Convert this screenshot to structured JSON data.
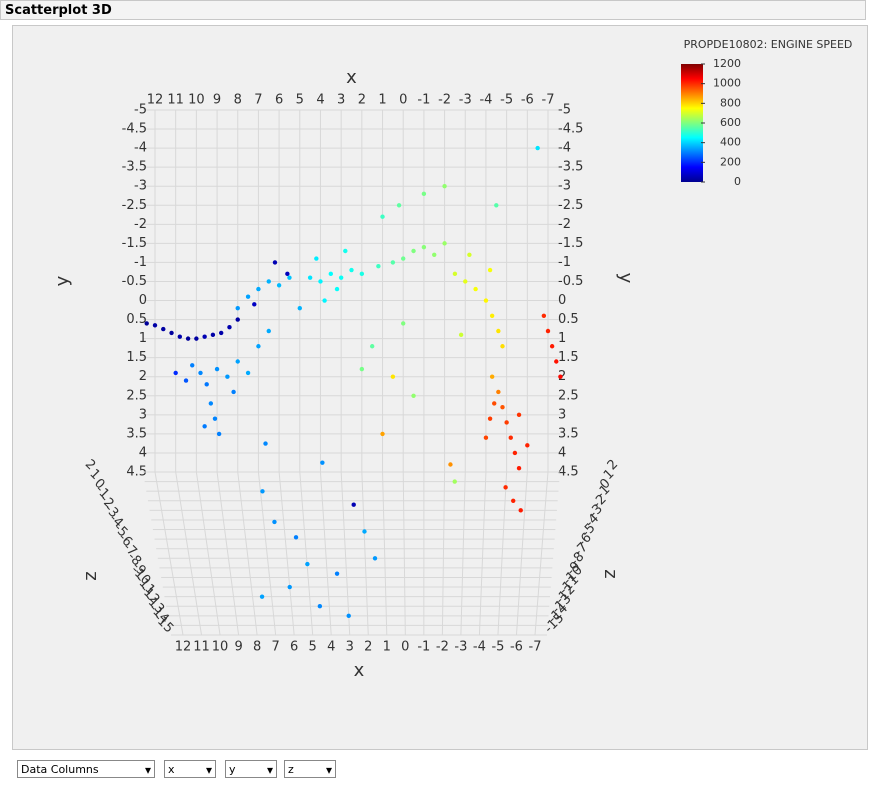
{
  "panel_title": "Scatterplot 3D",
  "chart_data": {
    "type": "scatter3d",
    "x_label": "x",
    "y_label": "y",
    "z_label": "z",
    "colorbar_title": "PROPDE10802: ENGINE SPEED",
    "clim": [
      0,
      1200
    ],
    "cticks": [
      0,
      200,
      400,
      600,
      800,
      1000,
      1200
    ],
    "xlim": [
      12,
      -7
    ],
    "xticks": [
      12,
      11,
      10,
      9,
      8,
      7,
      6,
      5,
      4,
      3,
      2,
      1,
      0,
      -1,
      -2,
      -3,
      -4,
      -5,
      -6,
      -7
    ],
    "ylim": [
      -5,
      4.5
    ],
    "yticks": [
      -5,
      -4.5,
      -4,
      -3.5,
      -3,
      -2.5,
      -2,
      -1.5,
      -1,
      -0.5,
      0,
      0.5,
      1,
      1.5,
      2,
      2.5,
      3,
      3.5,
      4,
      4.5
    ],
    "zlim": [
      2,
      -15
    ],
    "zticks": [
      2,
      1,
      0,
      -1,
      -2,
      -3,
      -4,
      -5,
      -6,
      -7,
      -8,
      -9,
      -10,
      -11,
      -12,
      -13,
      -14,
      -15
    ],
    "grid": true,
    "x": [
      12.4,
      12.0,
      11.6,
      11.2,
      10.8,
      10.4,
      10.0,
      9.6,
      9.2,
      8.8,
      8.4,
      8.0,
      6.2,
      5.6,
      7.2,
      10.2,
      9.8,
      9.5,
      9.0,
      8.5,
      8.2,
      9.3,
      9.1,
      8.9,
      9.6,
      8.0,
      7.5,
      10.5,
      11.0,
      8.0,
      7.5,
      7.0,
      6.5,
      6.0,
      5.5,
      5.0,
      6.5,
      7.0,
      4.5,
      4.0,
      3.5,
      3.0,
      2.5,
      2.0,
      3.2,
      3.8,
      4.2,
      2.8,
      1.2,
      0.5,
      0.0,
      -0.5,
      -1.0,
      -1.5,
      -2.0,
      0.2,
      -1.0,
      -2.0,
      1.0,
      0.0,
      1.5,
      -2.5,
      -3.0,
      -3.5,
      -4.0,
      -4.3,
      -4.6,
      -4.8,
      -4.2,
      -3.2,
      -2.8,
      -4.3,
      -4.6,
      -4.8,
      -5.0,
      -5.2,
      -5.4,
      -5.6,
      -5.0,
      -5.4,
      -5.8,
      -4.4,
      -4.2,
      -5.6,
      -6.0,
      -4.0,
      -2.3,
      -6.8,
      -7.0,
      -7.2,
      -7.4,
      -7.6,
      7.0,
      6.5,
      5.5,
      5.0,
      6.0,
      4.5,
      3.5,
      3.0,
      2.0,
      2.5,
      1.5,
      7.5,
      6.8,
      4.0,
      0.5,
      -0.5,
      1.0,
      -2.5,
      2.0,
      -6.5,
      -4.5
    ],
    "y": [
      0.6,
      0.65,
      0.75,
      0.85,
      0.95,
      1.0,
      1.0,
      0.95,
      0.9,
      0.85,
      0.7,
      0.5,
      -1.0,
      -0.7,
      0.1,
      1.7,
      1.9,
      2.2,
      1.8,
      2.0,
      2.4,
      2.7,
      3.1,
      3.5,
      3.3,
      1.6,
      1.9,
      2.1,
      1.9,
      0.2,
      -0.1,
      -0.3,
      -0.5,
      -0.4,
      -0.6,
      0.2,
      0.8,
      1.2,
      -0.6,
      -0.5,
      -0.7,
      -0.6,
      -0.8,
      -0.7,
      -0.3,
      0.0,
      -1.1,
      -1.3,
      -0.9,
      -1.0,
      -1.1,
      -1.3,
      -1.4,
      -1.2,
      -1.5,
      -2.5,
      -2.8,
      -3.0,
      -2.2,
      0.6,
      1.2,
      -0.7,
      -0.5,
      -0.3,
      0.0,
      0.4,
      0.8,
      1.2,
      -0.8,
      -1.2,
      0.9,
      2.0,
      2.4,
      2.8,
      3.2,
      3.6,
      4.0,
      4.4,
      4.4,
      4.5,
      4.5,
      2.7,
      3.1,
      3.0,
      3.8,
      3.6,
      3.8,
      0.4,
      0.8,
      1.2,
      1.6,
      2.0,
      4.0,
      4.3,
      4.2,
      4.4,
      4.5,
      4.5,
      4.4,
      4.5,
      4.3,
      4.1,
      4.5,
      4.5,
      3.0,
      3.5,
      2.0,
      2.5,
      3.5,
      4.5,
      1.8,
      -4.0,
      -2.5
    ],
    "z": [
      2,
      2,
      2,
      2,
      2,
      2,
      2,
      2,
      2,
      2,
      2,
      2,
      2,
      2,
      2,
      2,
      2,
      2,
      2,
      2,
      2,
      2,
      2,
      2,
      2,
      2,
      2,
      2,
      2,
      2,
      2,
      2,
      2,
      2,
      2,
      2,
      2,
      2,
      2,
      2,
      2,
      2,
      2,
      2,
      2,
      2,
      2,
      2,
      2,
      2,
      2,
      2,
      2,
      2,
      2,
      2,
      2,
      2,
      2,
      2,
      2,
      2,
      2,
      2,
      2,
      2,
      2,
      2,
      2,
      2,
      2,
      2,
      2,
      2,
      2,
      2,
      2,
      2,
      0,
      -1,
      -2,
      2,
      2,
      2,
      2,
      2,
      0,
      2,
      2,
      2,
      2,
      2,
      -2,
      -4,
      -6,
      -8,
      -10,
      -12,
      -9,
      -13,
      -5,
      -3,
      -7,
      -11,
      -1,
      -1,
      2,
      2,
      2,
      1,
      2,
      2,
      2
    ],
    "color_values": [
      30,
      45,
      40,
      35,
      50,
      30,
      40,
      60,
      45,
      50,
      55,
      40,
      60,
      70,
      80,
      300,
      310,
      290,
      320,
      330,
      300,
      310,
      305,
      300,
      295,
      340,
      350,
      250,
      200,
      330,
      340,
      350,
      360,
      370,
      380,
      360,
      350,
      340,
      420,
      440,
      450,
      460,
      470,
      480,
      455,
      440,
      430,
      470,
      520,
      550,
      580,
      600,
      610,
      620,
      630,
      560,
      590,
      620,
      520,
      600,
      560,
      700,
      720,
      740,
      760,
      770,
      780,
      790,
      740,
      700,
      690,
      850,
      900,
      950,
      980,
      1000,
      1010,
      1020,
      1000,
      1010,
      1020,
      960,
      980,
      990,
      1010,
      970,
      880,
      1000,
      1010,
      1020,
      1030,
      1040,
      330,
      320,
      300,
      340,
      330,
      310,
      300,
      320,
      350,
      60,
      330,
      340,
      310,
      320,
      780,
      620,
      860,
      640,
      590,
      420,
      550
    ]
  },
  "controls": [
    "Data Columns",
    "x",
    "y",
    "z"
  ]
}
